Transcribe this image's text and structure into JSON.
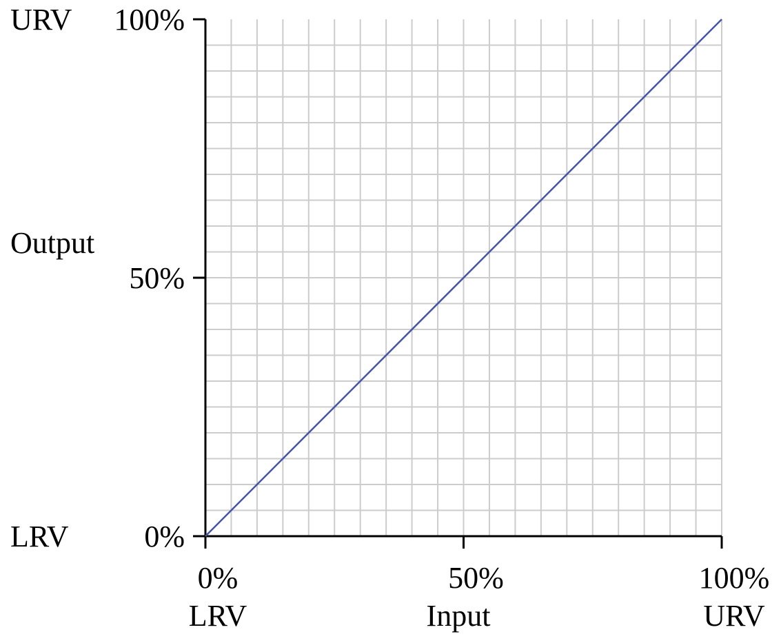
{
  "chart_data": {
    "type": "line",
    "title": "",
    "xlabel": "Input",
    "ylabel": "Output",
    "xlim": [
      0,
      100
    ],
    "ylim": [
      0,
      100
    ],
    "grid": true,
    "grid_divisions": 20,
    "x_ticks": [
      {
        "value": 0,
        "label": "0%",
        "sublabel": "LRV"
      },
      {
        "value": 50,
        "label": "50%",
        "sublabel": ""
      },
      {
        "value": 100,
        "label": "100%",
        "sublabel": "URV"
      }
    ],
    "y_ticks": [
      {
        "value": 0,
        "label": "0%",
        "sublabel": "LRV"
      },
      {
        "value": 50,
        "label": "50%",
        "sublabel": ""
      },
      {
        "value": 100,
        "label": "100%",
        "sublabel": "URV"
      }
    ],
    "series": [
      {
        "x": [
          0,
          100
        ],
        "y": [
          0,
          100
        ],
        "color": "#4455a6"
      }
    ]
  }
}
